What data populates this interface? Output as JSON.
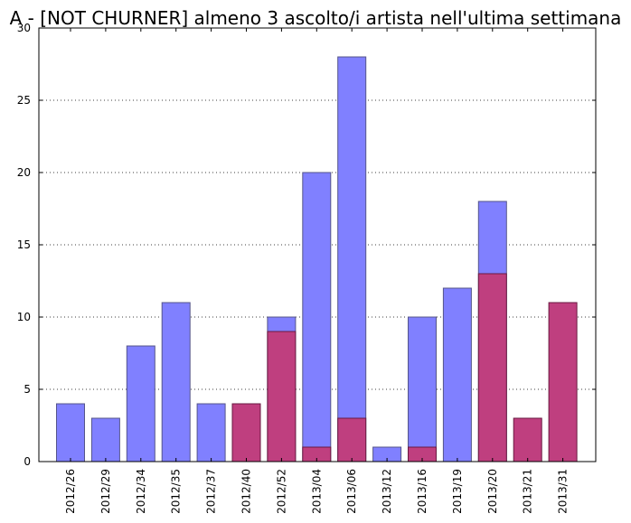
{
  "chart_data": {
    "type": "bar",
    "title": "A - [NOT CHURNER] almeno 3 ascolto/i artista nell'ultima settimana",
    "xlabel": "",
    "ylabel": "",
    "ylim": [
      0,
      30
    ],
    "yticks": [
      "0",
      "5",
      "10",
      "15",
      "20",
      "25",
      "30"
    ],
    "grid": "horizontal dotted",
    "legend": "none",
    "categories": [
      "2012/26",
      "2012/29",
      "2012/34",
      "2012/35",
      "2012/37",
      "2012/40",
      "2012/52",
      "2013/04",
      "2013/06",
      "2013/12",
      "2013/16",
      "2013/19",
      "2013/20",
      "2013/21",
      "2013/31"
    ],
    "series": [
      {
        "color": "#8080ff",
        "values": [
          4,
          3,
          8,
          11,
          4,
          0,
          10,
          20,
          28,
          1,
          10,
          12,
          18,
          0,
          0
        ]
      },
      {
        "color": "#bf3f7f",
        "values": [
          0,
          0,
          0,
          0,
          0,
          4,
          9,
          1,
          3,
          0,
          1,
          0,
          13,
          3,
          11
        ]
      }
    ]
  }
}
